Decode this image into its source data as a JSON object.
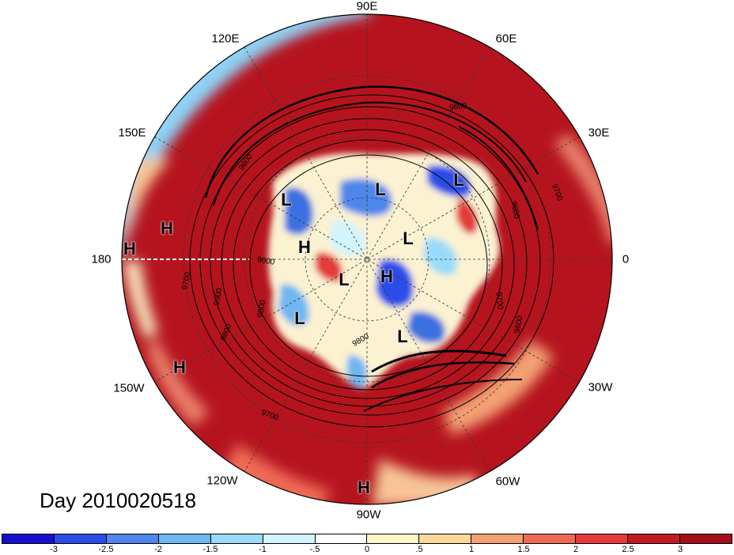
{
  "map": {
    "longitude_labels": [
      "90E",
      "60E",
      "30E",
      "0",
      "30W",
      "60W",
      "90W",
      "120W",
      "150W",
      "180",
      "150E",
      "120E"
    ],
    "contour_labels": [
      "9600",
      "9700",
      "9600",
      "9700",
      "9600",
      "9700",
      "9900",
      "9800",
      "9700",
      "9600",
      "9600",
      "9800",
      "9800"
    ],
    "high_markers": [
      "H",
      "H",
      "H",
      "H",
      "H",
      "H"
    ],
    "low_markers": [
      "L",
      "L",
      "L",
      "L",
      "L",
      "L",
      "L"
    ]
  },
  "timestamp_label": "Day 2010020518",
  "colorbar": {
    "colors": [
      "#1a0ecf",
      "#2b4ee8",
      "#4f86ea",
      "#6fb6f3",
      "#99dcfa",
      "#d2f4fc",
      "#ffffff",
      "#fff6c8",
      "#fbd79a",
      "#f3a174",
      "#ee6a55",
      "#e43a3a",
      "#c01a25",
      "#a3101c"
    ],
    "tick_labels": [
      "-3",
      "-2.5",
      "-2",
      "-1.5",
      "-1",
      "-.5",
      "0",
      ".5",
      "1",
      "1.5",
      "2",
      "2.5",
      "3"
    ]
  }
}
